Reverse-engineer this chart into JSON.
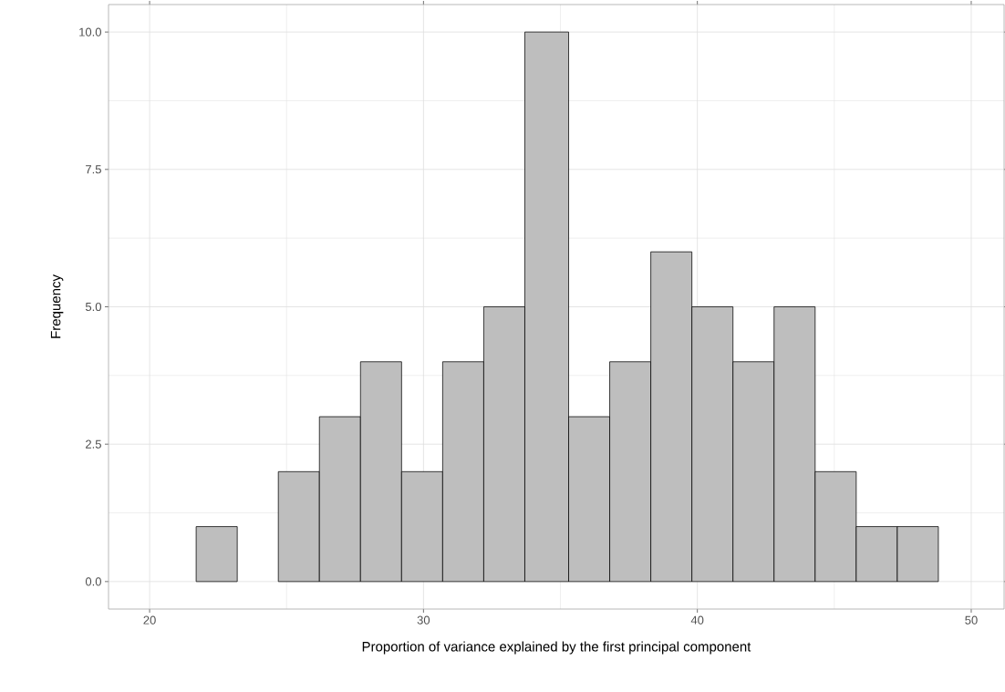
{
  "chart_data": {
    "type": "histogram",
    "xlabel": "Proportion of variance explained by the first principal component",
    "ylabel": "Frequency",
    "bins": [
      21.7,
      23.2,
      24.7,
      26.2,
      27.7,
      29.2,
      30.7,
      32.2,
      33.7,
      35.3,
      36.8,
      38.3,
      39.8,
      41.3,
      42.8,
      44.3,
      45.8,
      47.3,
      48.8
    ],
    "values": [
      1,
      0,
      2,
      3,
      4,
      2,
      4,
      5,
      10,
      3,
      4,
      6,
      5,
      4,
      5,
      2,
      1,
      1
    ],
    "color": "#bebebe",
    "xlim": [
      18.5,
      51.2
    ],
    "ylim": [
      -0.5,
      10.5
    ],
    "xticks": [
      20,
      30,
      40,
      50
    ],
    "yticks": [
      {
        "value": 0,
        "label": "0.0"
      },
      {
        "value": 2.5,
        "label": "2.5"
      },
      {
        "value": 5,
        "label": "5.0"
      },
      {
        "value": 7.5,
        "label": "7.5"
      },
      {
        "value": 10,
        "label": "10.0"
      }
    ],
    "grid": true
  }
}
